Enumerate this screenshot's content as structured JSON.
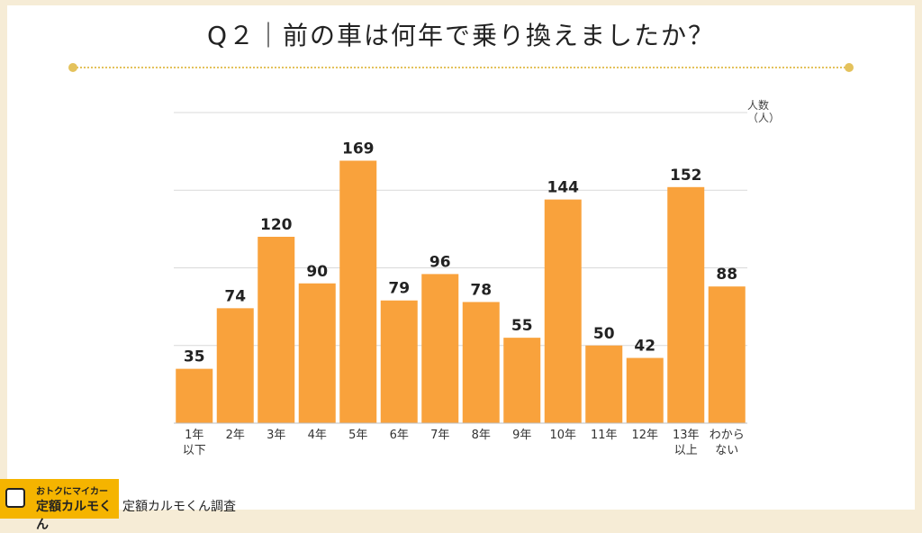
{
  "title": "Q２｜前の車は何年で乗り換えましたか？",
  "footer": {
    "logo_line1": "おトクにマイカー",
    "logo_line2": "定額カルモくん",
    "source": "定額カルモくん調査"
  },
  "colors": {
    "bar": "#f9a23c",
    "accent": "#e4c25c",
    "grid": "#d9d9d9"
  },
  "chart_data": {
    "type": "bar",
    "title": "Q２｜前の車は何年で乗り換えましたか？",
    "ylabel": "人数（人）",
    "unit_lines": [
      "人数",
      "（人）"
    ],
    "categories": [
      [
        "1年",
        "以下"
      ],
      [
        "2年"
      ],
      [
        "3年"
      ],
      [
        "4年"
      ],
      [
        "5年"
      ],
      [
        "6年"
      ],
      [
        "7年"
      ],
      [
        "8年"
      ],
      [
        "9年"
      ],
      [
        "10年"
      ],
      [
        "11年"
      ],
      [
        "12年"
      ],
      [
        "13年",
        "以上"
      ],
      [
        "わから",
        "ない"
      ]
    ],
    "values": [
      35,
      74,
      120,
      90,
      169,
      79,
      96,
      78,
      55,
      144,
      50,
      42,
      152,
      88
    ],
    "ylim": [
      0,
      200
    ],
    "gridlines": [
      50,
      100,
      150,
      200
    ],
    "grid": true,
    "legend": "none"
  }
}
